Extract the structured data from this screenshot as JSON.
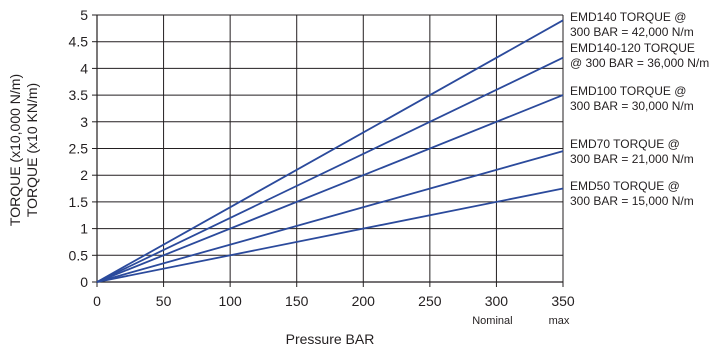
{
  "chart_data": {
    "type": "line",
    "xlabel": "Pressure BAR",
    "ylabel_lines": [
      "TORQUE (x10,000 N/m)",
      "TORQUE (x10 KN/m)"
    ],
    "xlim": [
      0,
      350
    ],
    "ylim": [
      0,
      5
    ],
    "x_ticks": [
      0,
      50,
      100,
      150,
      200,
      250,
      300,
      350
    ],
    "y_ticks": [
      "0",
      "0.5",
      "1",
      "1.5",
      "2",
      "2.5",
      "3",
      "3.5",
      "4",
      "4.5",
      "5"
    ],
    "x_sublabels": [
      {
        "at": 300,
        "text": "Nominal"
      },
      {
        "at": 350,
        "text": "max"
      }
    ],
    "grid": true,
    "series_color": "#2b4a9c",
    "series": [
      {
        "x": [
          0,
          350
        ],
        "y": [
          0,
          4.9
        ],
        "annotation": [
          "EMD140 TORQUE @",
          "300 BAR = 42,000 N/m"
        ]
      },
      {
        "x": [
          0,
          350
        ],
        "y": [
          0,
          4.2
        ],
        "annotation": [
          "EMD140-120 TORQUE",
          "@ 300 BAR = 36,000 N/m"
        ]
      },
      {
        "x": [
          0,
          350
        ],
        "y": [
          0,
          3.5
        ],
        "annotation": [
          "EMD100 TORQUE @",
          "300 BAR = 30,000 N/m"
        ]
      },
      {
        "x": [
          0,
          350
        ],
        "y": [
          0,
          2.45
        ],
        "annotation": [
          "EMD70 TORQUE @",
          "300 BAR = 21,000 N/m"
        ]
      },
      {
        "x": [
          0,
          350
        ],
        "y": [
          0,
          1.75
        ],
        "annotation": [
          "EMD50 TORQUE @",
          "300 BAR = 15,000 N/m"
        ]
      }
    ]
  }
}
